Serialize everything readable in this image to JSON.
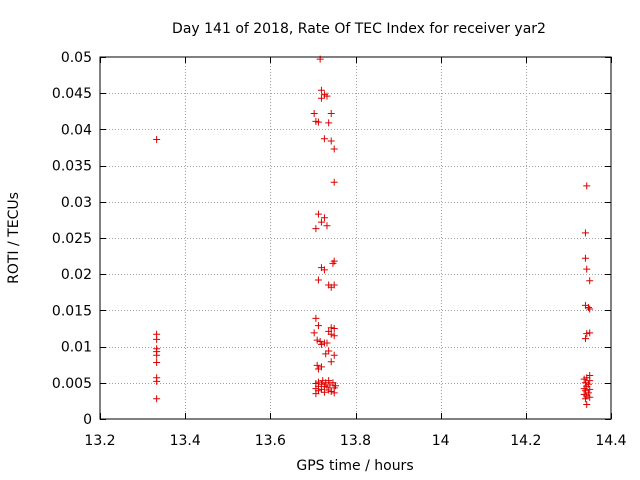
{
  "chart_data": {
    "type": "scatter",
    "title": "Day 141 of 2018, Rate Of TEC Index for receiver yar2",
    "xlabel": "GPS time / hours",
    "ylabel": "ROTI / TECUs",
    "xlim": [
      13.2,
      14.4
    ],
    "ylim": [
      0,
      0.05
    ],
    "xticks": [
      13.2,
      13.4,
      13.6,
      13.8,
      14.0,
      14.2,
      14.4
    ],
    "xtick_labels": [
      "13.2",
      "13.4",
      "13.6",
      "13.8",
      "14",
      "14.2",
      "14.4"
    ],
    "yticks": [
      0,
      0.005,
      0.01,
      0.015,
      0.02,
      0.025,
      0.03,
      0.035,
      0.04,
      0.045,
      0.05
    ],
    "ytick_labels": [
      "0",
      "0.005",
      "0.01",
      "0.015",
      "0.02",
      "0.025",
      "0.03",
      "0.035",
      "0.04",
      "0.045",
      "0.05"
    ],
    "grid": true,
    "marker": "+",
    "color": "#dd0000",
    "series": [
      {
        "name": "ROTI",
        "points": [
          [
            13.333,
            0.0386
          ],
          [
            13.333,
            0.0117
          ],
          [
            13.333,
            0.011
          ],
          [
            13.333,
            0.0097
          ],
          [
            13.333,
            0.0093
          ],
          [
            13.333,
            0.0088
          ],
          [
            13.333,
            0.0078
          ],
          [
            13.333,
            0.0057
          ],
          [
            13.333,
            0.0052
          ],
          [
            13.333,
            0.0028
          ],
          [
            13.717,
            0.0497
          ],
          [
            13.72,
            0.0454
          ],
          [
            13.727,
            0.0448
          ],
          [
            13.733,
            0.0446
          ],
          [
            13.72,
            0.0443
          ],
          [
            13.703,
            0.0422
          ],
          [
            13.743,
            0.0422
          ],
          [
            13.707,
            0.0411
          ],
          [
            13.713,
            0.041
          ],
          [
            13.737,
            0.0409
          ],
          [
            13.727,
            0.0387
          ],
          [
            13.743,
            0.0384
          ],
          [
            13.75,
            0.0373
          ],
          [
            13.75,
            0.0327
          ],
          [
            13.713,
            0.0283
          ],
          [
            13.727,
            0.0278
          ],
          [
            13.72,
            0.0272
          ],
          [
            13.733,
            0.0267
          ],
          [
            13.707,
            0.0263
          ],
          [
            13.75,
            0.0218
          ],
          [
            13.747,
            0.0215
          ],
          [
            13.72,
            0.0209
          ],
          [
            13.727,
            0.0206
          ],
          [
            13.713,
            0.0192
          ],
          [
            13.737,
            0.0185
          ],
          [
            13.75,
            0.0185
          ],
          [
            13.743,
            0.0182
          ],
          [
            13.707,
            0.0139
          ],
          [
            13.713,
            0.0129
          ],
          [
            13.743,
            0.0126
          ],
          [
            13.75,
            0.0125
          ],
          [
            13.737,
            0.0121
          ],
          [
            13.703,
            0.0119
          ],
          [
            13.743,
            0.0117
          ],
          [
            13.75,
            0.0115
          ],
          [
            13.71,
            0.0109
          ],
          [
            13.717,
            0.0107
          ],
          [
            13.727,
            0.0105
          ],
          [
            13.733,
            0.0105
          ],
          [
            13.72,
            0.0103
          ],
          [
            13.737,
            0.0094
          ],
          [
            13.73,
            0.009
          ],
          [
            13.75,
            0.0088
          ],
          [
            13.743,
            0.0079
          ],
          [
            13.71,
            0.0074
          ],
          [
            13.72,
            0.0072
          ],
          [
            13.713,
            0.0069
          ],
          [
            13.723,
            0.0053
          ],
          [
            13.737,
            0.0053
          ],
          [
            13.713,
            0.0051
          ],
          [
            13.73,
            0.005
          ],
          [
            13.747,
            0.005
          ],
          [
            13.707,
            0.0049
          ],
          [
            13.72,
            0.0048
          ],
          [
            13.74,
            0.0047
          ],
          [
            13.753,
            0.0046
          ],
          [
            13.713,
            0.0045
          ],
          [
            13.727,
            0.0045
          ],
          [
            13.733,
            0.0044
          ],
          [
            13.75,
            0.0043
          ],
          [
            13.707,
            0.0042
          ],
          [
            13.72,
            0.0041
          ],
          [
            13.737,
            0.004
          ],
          [
            13.713,
            0.0039
          ],
          [
            13.743,
            0.0038
          ],
          [
            13.727,
            0.0037
          ],
          [
            13.75,
            0.0036
          ],
          [
            13.707,
            0.0035
          ],
          [
            14.343,
            0.0322
          ],
          [
            14.34,
            0.0257
          ],
          [
            14.34,
            0.0222
          ],
          [
            14.343,
            0.0207
          ],
          [
            14.35,
            0.0191
          ],
          [
            14.34,
            0.0157
          ],
          [
            14.347,
            0.0154
          ],
          [
            14.35,
            0.0152
          ],
          [
            14.35,
            0.0119
          ],
          [
            14.343,
            0.0118
          ],
          [
            14.34,
            0.0111
          ],
          [
            14.35,
            0.006
          ],
          [
            14.343,
            0.0057
          ],
          [
            14.337,
            0.0055
          ],
          [
            14.35,
            0.0053
          ],
          [
            14.34,
            0.005
          ],
          [
            14.347,
            0.0048
          ],
          [
            14.343,
            0.0045
          ],
          [
            14.337,
            0.0042
          ],
          [
            14.35,
            0.0041
          ],
          [
            14.34,
            0.0039
          ],
          [
            14.347,
            0.0036
          ],
          [
            14.337,
            0.0034
          ],
          [
            14.343,
            0.0032
          ],
          [
            14.35,
            0.003
          ],
          [
            14.34,
            0.0028
          ],
          [
            14.343,
            0.002
          ]
        ]
      }
    ]
  }
}
